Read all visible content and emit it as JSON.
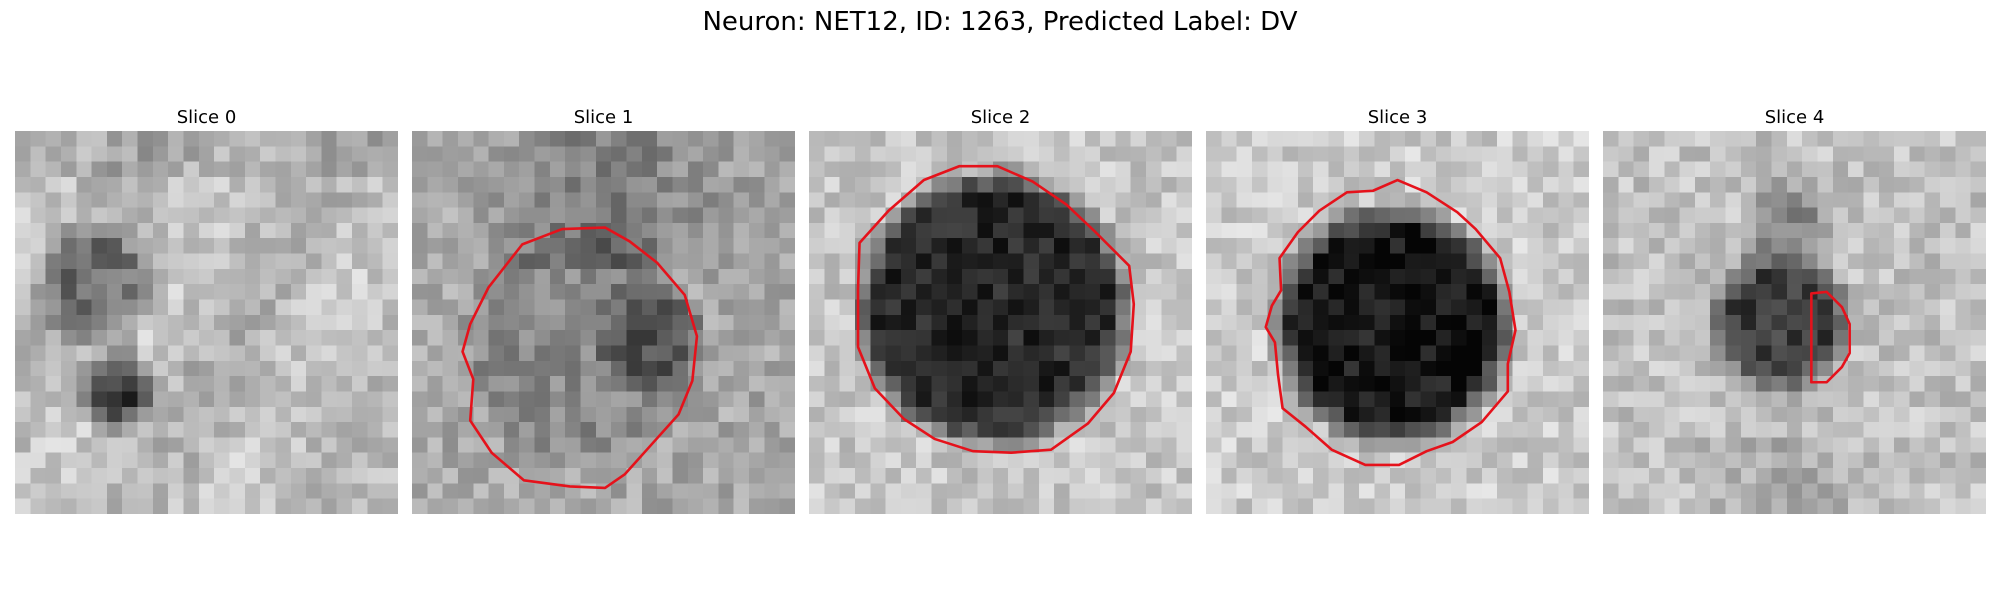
{
  "figure": {
    "title": "Neuron: NET12, ID: 1263, Predicted Label: DV"
  },
  "panels": [
    {
      "label": "Slice 0",
      "roi_color": "#e5121b",
      "has_contour": false
    },
    {
      "label": "Slice 1",
      "roi_color": "#e5121b",
      "has_contour": true
    },
    {
      "label": "Slice 2",
      "roi_color": "#e5121b",
      "has_contour": true
    },
    {
      "label": "Slice 3",
      "roi_color": "#e5121b",
      "has_contour": true
    },
    {
      "label": "Slice 4",
      "roi_color": "#e5121b",
      "has_contour": true
    }
  ]
}
